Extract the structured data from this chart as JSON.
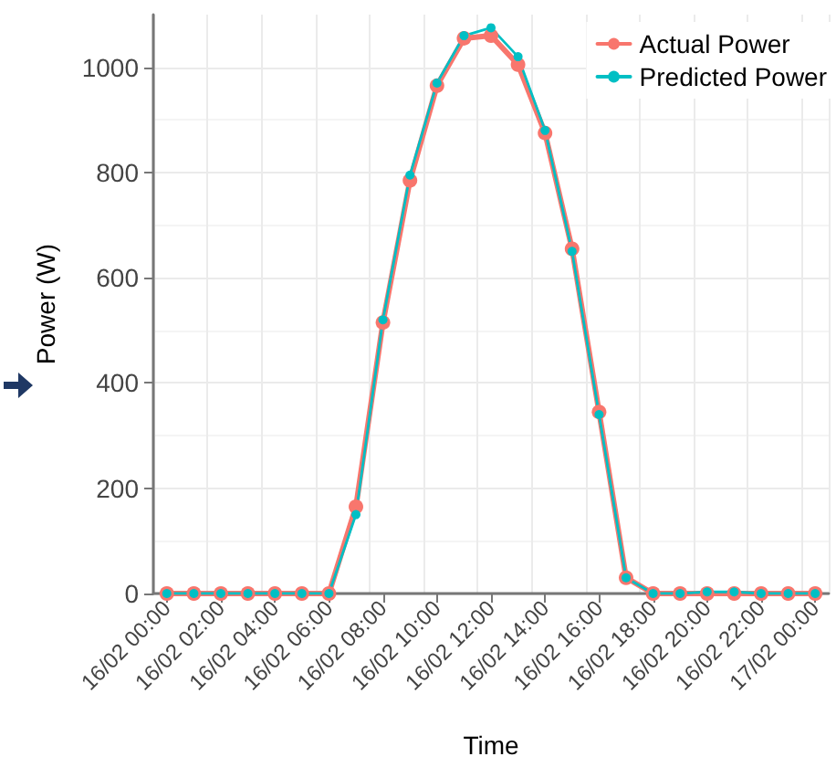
{
  "chart_data": {
    "type": "line",
    "xlabel": "Time",
    "ylabel": "Power (W)",
    "categories": [
      "16/02 00:00",
      null,
      "16/02 02:00",
      null,
      "16/02 04:00",
      null,
      "16/02 06:00",
      null,
      "16/02 08:00",
      null,
      "16/02 10:00",
      null,
      "16/02 12:00",
      null,
      "16/02 14:00",
      null,
      "16/02 16:00",
      null,
      "16/02 18:00",
      null,
      "16/02 20:00",
      null,
      "16/02 22:00",
      null,
      "17/02 00:00"
    ],
    "series": [
      {
        "name": "Actual Power",
        "color": "#f8766d",
        "values": [
          0,
          0,
          0,
          0,
          0,
          0,
          0,
          165,
          515,
          785,
          965,
          1055,
          1060,
          1005,
          875,
          655,
          345,
          30,
          0,
          0,
          0,
          0,
          0,
          0,
          0
        ]
      },
      {
        "name": "Predicted Power",
        "color": "#00bfc4",
        "values": [
          0,
          0,
          0,
          0,
          0,
          0,
          0,
          150,
          520,
          795,
          970,
          1060,
          1075,
          1020,
          880,
          650,
          340,
          30,
          0,
          0,
          3,
          3,
          0,
          0,
          0
        ]
      }
    ],
    "ylim": [
      0,
      1100
    ],
    "yticks": [
      0,
      200,
      400,
      600,
      800,
      1000
    ],
    "grid": true,
    "legend": "top right",
    "marker": "circle",
    "line_style": "solid"
  }
}
